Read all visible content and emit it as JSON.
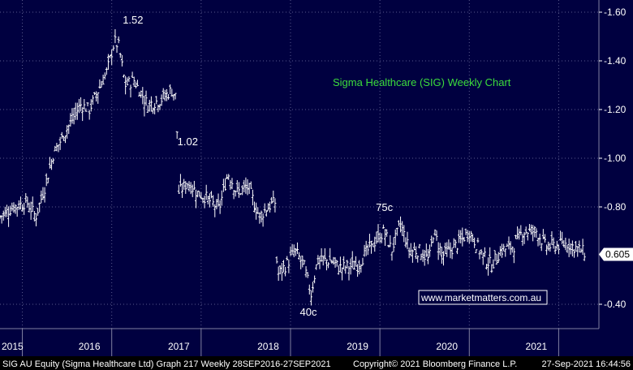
{
  "chart_data": {
    "type": "ohlc",
    "title": "Sigma Healthcare (SIG) Weekly Chart",
    "frequency": "weekly",
    "last_price": "0.605",
    "y_ticks": [
      "1.60",
      "1.40",
      "1.20",
      "1.00",
      "0.80",
      "0.40"
    ],
    "ylim": [
      0.3,
      1.65
    ],
    "x_labels": [
      "2015",
      "2016",
      "2017",
      "2018",
      "2019",
      "2020",
      "2021"
    ],
    "xlim": [
      2015.0,
      2021.7
    ],
    "grid": true,
    "annotations": [
      {
        "text": "1.52",
        "x": 2016.3,
        "y": 1.52
      },
      {
        "text": "1.02",
        "x": 2017.1,
        "y": 1.02
      },
      {
        "text": "75c",
        "x": 2019.3,
        "y": 0.75
      },
      {
        "text": "40c",
        "x": 2018.45,
        "y": 0.4
      }
    ],
    "watermark": "www.marketmatters.com.au",
    "anchors": [
      [
        2015.0,
        0.76
      ],
      [
        2015.15,
        0.8
      ],
      [
        2015.3,
        0.82
      ],
      [
        2015.4,
        0.76
      ],
      [
        2015.5,
        0.88
      ],
      [
        2015.6,
        1.02
      ],
      [
        2015.75,
        1.12
      ],
      [
        2015.9,
        1.22
      ],
      [
        2016.0,
        1.2
      ],
      [
        2016.1,
        1.28
      ],
      [
        2016.2,
        1.36
      ],
      [
        2016.28,
        1.48
      ],
      [
        2016.33,
        1.46
      ],
      [
        2016.4,
        1.3
      ],
      [
        2016.5,
        1.32
      ],
      [
        2016.65,
        1.22
      ],
      [
        2016.8,
        1.24
      ],
      [
        2016.92,
        1.28
      ],
      [
        2016.97,
        1.25
      ],
      [
        2017.0,
        0.86
      ],
      [
        2017.1,
        0.9
      ],
      [
        2017.2,
        0.86
      ],
      [
        2017.3,
        0.84
      ],
      [
        2017.45,
        0.79
      ],
      [
        2017.55,
        0.94
      ],
      [
        2017.65,
        0.86
      ],
      [
        2017.78,
        0.88
      ],
      [
        2017.9,
        0.76
      ],
      [
        2018.0,
        0.8
      ],
      [
        2018.08,
        0.82
      ],
      [
        2018.1,
        0.52
      ],
      [
        2018.2,
        0.56
      ],
      [
        2018.3,
        0.62
      ],
      [
        2018.4,
        0.56
      ],
      [
        2018.48,
        0.44
      ],
      [
        2018.55,
        0.58
      ],
      [
        2018.7,
        0.58
      ],
      [
        2018.8,
        0.55
      ],
      [
        2019.0,
        0.56
      ],
      [
        2019.15,
        0.64
      ],
      [
        2019.3,
        0.7
      ],
      [
        2019.38,
        0.62
      ],
      [
        2019.48,
        0.73
      ],
      [
        2019.58,
        0.62
      ],
      [
        2019.7,
        0.62
      ],
      [
        2019.8,
        0.58
      ],
      [
        2019.85,
        0.7
      ],
      [
        2019.95,
        0.6
      ],
      [
        2020.1,
        0.64
      ],
      [
        2020.25,
        0.7
      ],
      [
        2020.4,
        0.6
      ],
      [
        2020.5,
        0.56
      ],
      [
        2020.6,
        0.62
      ],
      [
        2020.75,
        0.64
      ],
      [
        2020.85,
        0.7
      ],
      [
        2021.0,
        0.7
      ],
      [
        2021.1,
        0.64
      ],
      [
        2021.2,
        0.64
      ],
      [
        2021.35,
        0.65
      ],
      [
        2021.5,
        0.62
      ],
      [
        2021.55,
        0.61
      ]
    ]
  },
  "footer": {
    "security": "SIG AU Equity (Sigma Healthcare Ltd) Graph 217  Weekly 28SEP2016-27SEP2021",
    "copyright": "Copyright© 2021 Bloomberg Finance L.P.",
    "timestamp": "27-Sep-2021 16:44:56"
  },
  "colors": {
    "background": "#000040",
    "grid": "#5a5a8c",
    "bars": "#ffffff",
    "title": "#3cdc3c",
    "axis_text": "#ffffff",
    "footer_bg": "#000000",
    "footer_text": "#ffffff"
  }
}
